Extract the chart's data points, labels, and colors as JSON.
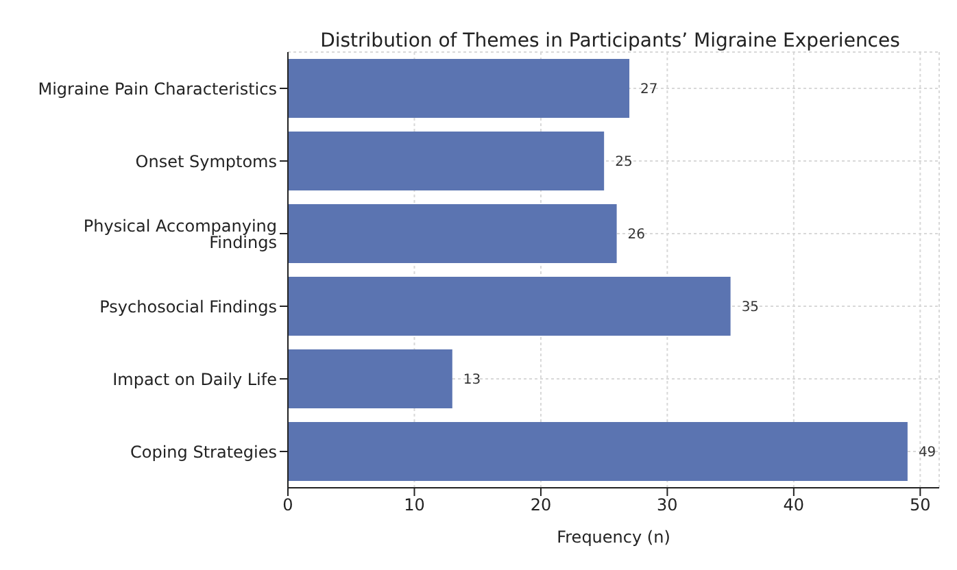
{
  "chart_data": {
    "type": "bar",
    "orientation": "horizontal",
    "title": "Distribution of Themes in Participants’ Migraine Experiences",
    "xlabel": "Frequency (n)",
    "categories": [
      "Migraine Pain Characteristics",
      "Onset Symptoms",
      "Physical Accompanying Findings",
      "Psychosocial Findings",
      "Impact on Daily Life",
      "Coping Strategies"
    ],
    "values": [
      27,
      25,
      26,
      35,
      13,
      49
    ],
    "color": "#5b74b1",
    "xlim": [
      0,
      51.5
    ],
    "xticks": [
      0,
      10,
      20,
      30,
      40,
      50
    ],
    "grid": true,
    "data_labels": true
  }
}
